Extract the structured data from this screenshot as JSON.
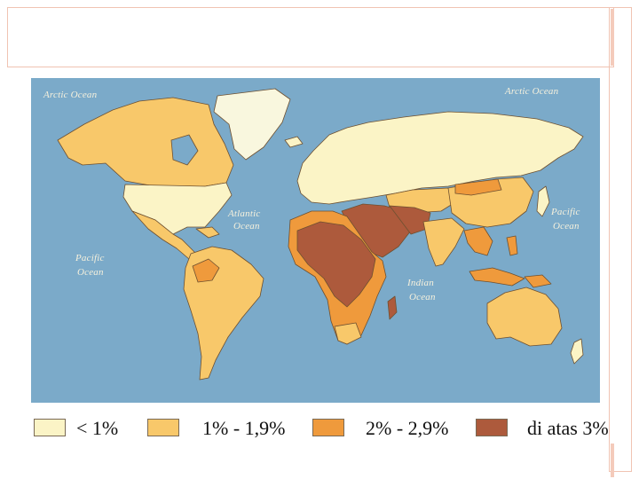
{
  "map": {
    "ocean_labels": {
      "arctic_west": "Arctic Ocean",
      "arctic_east": "Arctic Ocean",
      "atlantic_1": "Atlantic",
      "atlantic_2": "Ocean",
      "pacific_west_1": "Pacific",
      "pacific_west_2": "Ocean",
      "pacific_east_1": "Pacific",
      "pacific_east_2": "Ocean",
      "indian_1": "Indian",
      "indian_2": "Ocean"
    },
    "colors": {
      "ocean": "#7baac9",
      "ice": "#f9f7de",
      "under_1": "#fbf4c6",
      "range_1_19": "#f8c86a",
      "range_2_29": "#ef9a3c",
      "above_3": "#ad5a3c",
      "no_data": "#8f9aa0",
      "border": "#6e5030"
    }
  },
  "legend": {
    "items": [
      {
        "label": "< 1%",
        "color": "#fbf4c6"
      },
      {
        "label": "1% - 1,9%",
        "color": "#f8c86a"
      },
      {
        "label": "2% - 2,9%",
        "color": "#ef9a3c"
      },
      {
        "label": "di atas 3%",
        "color": "#ad5a3c"
      }
    ]
  }
}
